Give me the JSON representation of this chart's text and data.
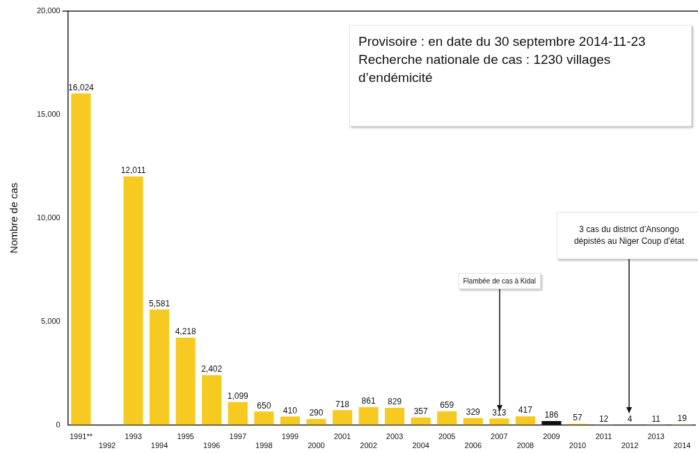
{
  "chart_data": {
    "type": "bar",
    "ylabel": "Nombre de cas",
    "categories": [
      "1991**",
      "1992",
      "1993",
      "1994",
      "1995",
      "1996",
      "1997",
      "1998",
      "1999",
      "2000",
      "2001",
      "2002",
      "2003",
      "2004",
      "2005",
      "2006",
      "2007",
      "2008",
      "2009",
      "2010",
      "2011",
      "2012",
      "2013",
      "2014"
    ],
    "values": [
      16024,
      null,
      12011,
      5581,
      4218,
      2402,
      1099,
      650,
      410,
      290,
      718,
      861,
      829,
      357,
      659,
      329,
      313,
      417,
      186,
      57,
      12,
      4,
      11,
      19
    ],
    "value_labels": [
      "16,024",
      null,
      "12,011",
      "5,581",
      "4,218",
      "2,402",
      "1,099",
      "650",
      "410",
      "290",
      "718",
      "861",
      "829",
      "357",
      "659",
      "329",
      "313",
      "417",
      "186",
      "57",
      "12",
      "4",
      "11",
      "19"
    ],
    "colors": [
      "#f7ca22",
      "#f7ca22",
      "#f7ca22",
      "#f7ca22",
      "#f7ca22",
      "#f7ca22",
      "#f7ca22",
      "#f7ca22",
      "#f7ca22",
      "#f7ca22",
      "#f7ca22",
      "#f7ca22",
      "#f7ca22",
      "#f7ca22",
      "#f7ca22",
      "#f7ca22",
      "#f7ca22",
      "#f7ca22",
      "#111111",
      "#f7ca22",
      "#f7ca22",
      "#f7ca22",
      "#f7ca22",
      "#f7ca22"
    ],
    "ylim": [
      0,
      20000
    ],
    "yticks": [
      {
        "value": 0,
        "label": "0"
      },
      {
        "value": 5000,
        "label": "5,000"
      },
      {
        "value": 10000,
        "label": "10,000"
      },
      {
        "value": 15000,
        "label": "15,000"
      },
      {
        "value": 20000,
        "label": "20,000"
      }
    ],
    "grid": false,
    "legend": false,
    "annotations": [
      "Provisoire : en date du 30 septembre 2014-11-23 Recherche nationale de cas : 1230 villages d’endémicité",
      "Flambée de cas à Kidal",
      "3 cas du district d’Ansongo dépistés au Niger Coup d’état"
    ]
  }
}
